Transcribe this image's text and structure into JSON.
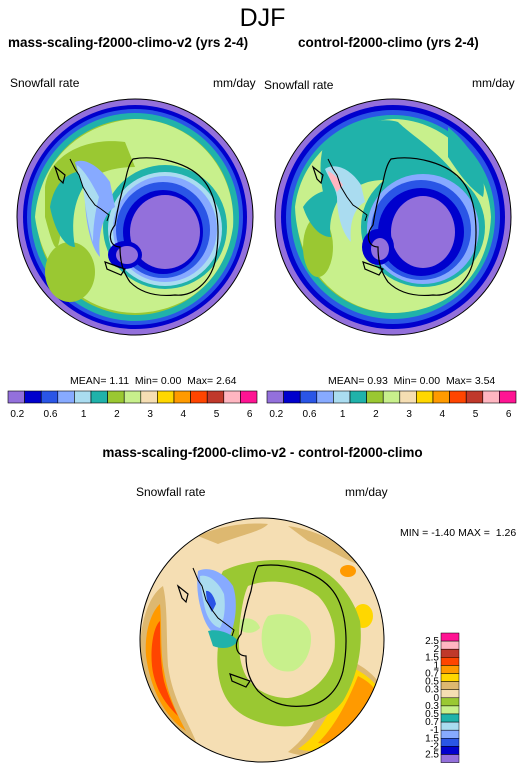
{
  "page": {
    "season": "DJF"
  },
  "panels": {
    "left": {
      "title": "mass-scaling-f2000-climo-v2 (yrs 2-4)",
      "variable": "Snowfall rate",
      "units": "mm/day",
      "mean_label": "MEAN=",
      "mean": "1.11",
      "min_label": "Min=",
      "min": "0.00",
      "max_label": "Max=",
      "max": "2.64"
    },
    "right": {
      "title": "control-f2000-climo (yrs 2-4)",
      "variable": "Snowfall rate",
      "units": "mm/day",
      "mean_label": "MEAN=",
      "mean": "0.93",
      "min_label": "Min=",
      "min": "0.00",
      "max_label": "Max=",
      "max": "3.54"
    },
    "diff": {
      "title": "mass-scaling-f2000-climo-v2 - control-f2000-climo",
      "variable": "Snowfall rate",
      "units": "mm/day",
      "min_label": "MIN =",
      "min": "-1.40",
      "max_label": "MAX =",
      "max": "1.26"
    }
  },
  "colorbars": {
    "absolute": {
      "colors": [
        "#9370db",
        "#0000cd",
        "#2a55e6",
        "#87aaff",
        "#aadcf0",
        "#20b2aa",
        "#9ac832",
        "#c8f08c",
        "#f5deb3",
        "#ffd700",
        "#ff9a00",
        "#ff4500",
        "#c0392b",
        "#ffb6c1",
        "#ff1493"
      ],
      "tick_labels": [
        "0.2",
        "0.6",
        "1",
        "2",
        "3",
        "4",
        "5",
        "6"
      ]
    },
    "difference": {
      "colors": [
        "#ff1493",
        "#ffb6c1",
        "#c0392b",
        "#ff4500",
        "#ff9a00",
        "#ffd700",
        "#ddb870",
        "#f5deb3",
        "#9ac832",
        "#c8f08c",
        "#20b2aa",
        "#aadcf0",
        "#87aaff",
        "#2a55e6",
        "#0000cd",
        "#9370db"
      ],
      "tick_labels": [
        "2.5",
        "2",
        "1.5",
        "1",
        "0.7",
        "0.5",
        "0.3",
        "0",
        "-0.3",
        "-0.5",
        "-0.7",
        "-1",
        "-1.5",
        "-2",
        "-2.5"
      ]
    }
  }
}
